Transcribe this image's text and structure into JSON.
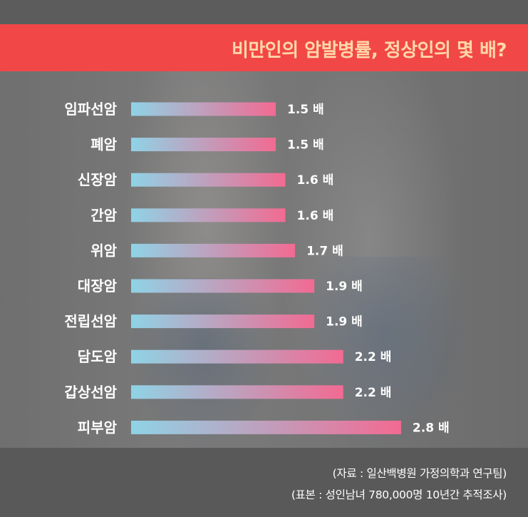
{
  "header": {
    "title": "비만인의 암발병률, 정상인의 몇 배?",
    "background": "#f24747",
    "title_color": "#ffd9a8"
  },
  "footer": {
    "source": "(자료 : 일산백병원 가정의학과 연구팀)",
    "sample": "(표본 : 성인남녀 780,000명 10년간 추적조사)"
  },
  "chart_data": {
    "type": "bar",
    "orientation": "horizontal",
    "categories": [
      "임파선암",
      "폐암",
      "신장암",
      "간암",
      "위암",
      "대장암",
      "전립선암",
      "담도암",
      "갑상선암",
      "피부암"
    ],
    "values": [
      1.5,
      1.5,
      1.6,
      1.6,
      1.7,
      1.9,
      1.9,
      2.2,
      2.2,
      2.8
    ],
    "value_labels": [
      "1.5 배",
      "1.5 배",
      "1.6 배",
      "1.6 배",
      "1.7 배",
      "1.9 배",
      "1.9 배",
      "2.2 배",
      "2.2 배",
      "2.8 배"
    ],
    "bar_gradient": [
      "#8fd3e6",
      "#f26a92"
    ],
    "title": "",
    "xlabel": "",
    "ylabel": ""
  }
}
